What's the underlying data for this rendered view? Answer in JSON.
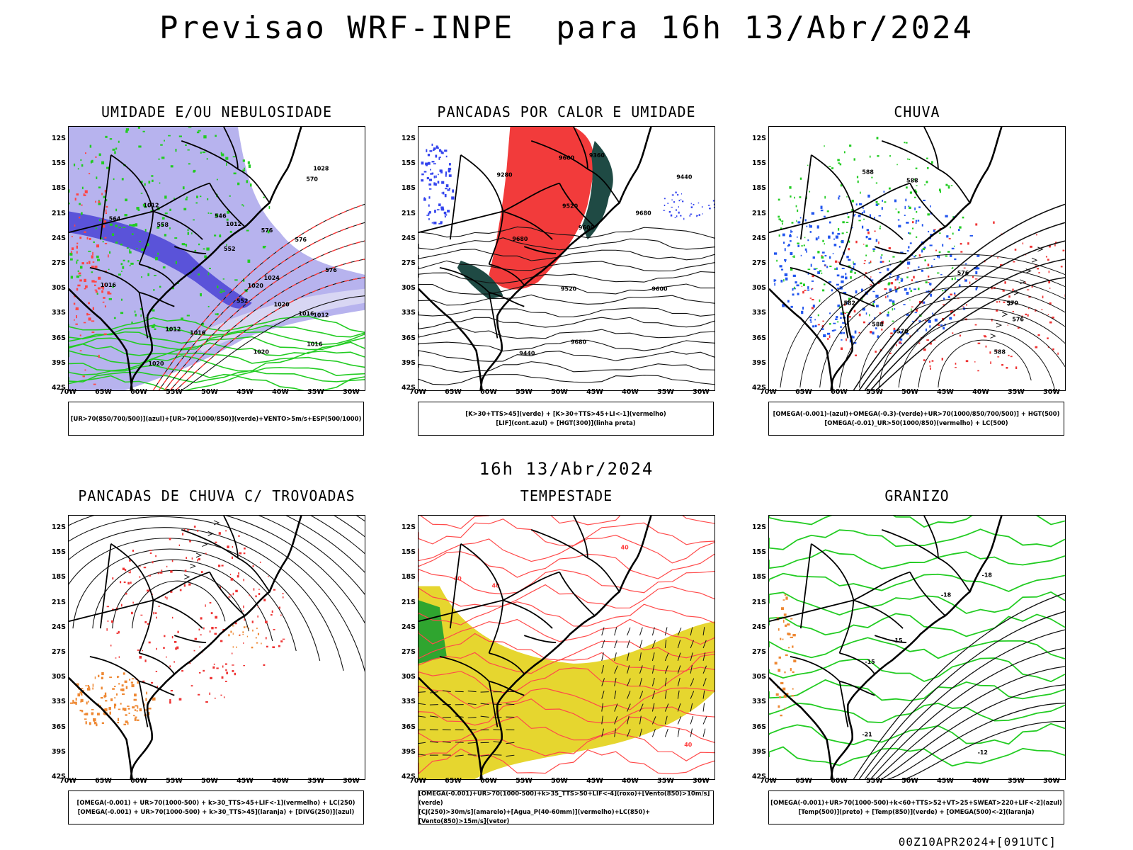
{
  "title": "Previsao WRF-INPE  para 16h 13/Abr/2024",
  "subtitle": "16h 13/Abr/2024",
  "footer": "00Z10APR2024+[091UTC]",
  "lat_labels": [
    "12S",
    "15S",
    "18S",
    "21S",
    "24S",
    "27S",
    "30S",
    "33S",
    "36S",
    "39S",
    "42S"
  ],
  "lon_labels": [
    "70W",
    "65W",
    "60W",
    "55W",
    "50W",
    "45W",
    "40W",
    "35W",
    "30W"
  ],
  "panels": [
    {
      "id": "umidade",
      "title": "UMIDADE E/OU NEBULOSIDADE",
      "legend": [
        "[UR>70(850/700/500)](azul)+[UR>70(1000/850)](verde)+VENTO>5m/s+ESP(500/1000)"
      ],
      "contour_labels": [
        "1012",
        "1012",
        "1012",
        "1016",
        "1016",
        "1016",
        "1020",
        "1020",
        "1020",
        "1024",
        "1028",
        "1020",
        "1012",
        "1016",
        "576",
        "576",
        "576",
        "570",
        "564",
        "558",
        "552",
        "552",
        "546"
      ]
    },
    {
      "id": "pancadas-calor",
      "title": "PANCADAS POR CALOR E UMIDADE",
      "legend": [
        "[K>30+TTS>45](verde) + [K>30+TTS>45+LI<-1](vermelho)",
        "[LIF](cont.azul) + [HGT(300)](linha preta)"
      ],
      "contour_labels": [
        "9680",
        "9680",
        "9680",
        "9600",
        "9600",
        "9600",
        "9520",
        "9520",
        "9440",
        "9440",
        "9360",
        "9280"
      ]
    },
    {
      "id": "chuva",
      "title": "CHUVA",
      "legend": [
        "[OMEGA(-0.001)-(azul)+OMEGA(-0.3)-(verde)+UR>70(1000/850/700/500)] + HGT(500)",
        "[OMEGA(-0.01)_UR>50(1000/850)(vermelho) + LC(500)"
      ],
      "contour_labels": [
        "588",
        "588",
        "588",
        "588",
        "582",
        "576",
        "576",
        "570",
        "570"
      ]
    },
    {
      "id": "pancadas-trovoadas",
      "title": "PANCADAS DE CHUVA C/ TROVOADAS",
      "legend": [
        "[OMEGA(-0.001) + UR>70(1000-500) + k>30_TTS>45+LIF<-1](vermelho) + LC(250)",
        "[OMEGA(-0.001) + UR>70(1000-500) + k>30_TTS>45](laranja) + [DIVG(250)](azul)"
      ],
      "contour_labels": []
    },
    {
      "id": "tempestade",
      "title": "TEMPESTADE",
      "legend": [
        "[OMEGA(-0.001)+UR>70(1000-500)+k>35_TTS>50+LIF<-4](roxo)+[Vento(850)>10m/s](verde)",
        "[CJ(250)>30m/s](amarelo)+[Agua_P(40-60mm)](vermelho)+LC(850)+[Vento(850)>15m/s](vetor)"
      ],
      "contour_labels": [
        "40",
        "40",
        "40",
        "40"
      ]
    },
    {
      "id": "granizo",
      "title": "GRANIZO",
      "legend": [
        "[OMEGA(-0.001)+UR>70(1000-500)+k<60+TTS>52+VT>25+SWEAT>220+LIF<-2](azul)",
        "[Temp(500)](preto) + [Temp(850)](verde) + [OMEGA(500)<-2](laranja)"
      ],
      "contour_labels": [
        "-15",
        "-12",
        "-15",
        "-18",
        "-21",
        "-18"
      ]
    }
  ]
}
